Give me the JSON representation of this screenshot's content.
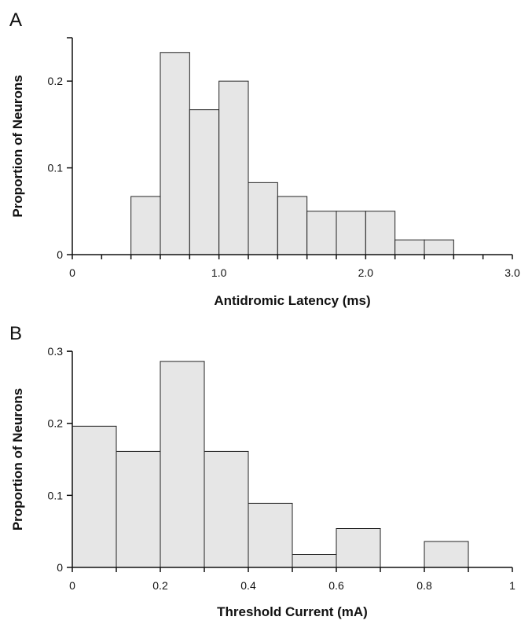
{
  "chart_data": [
    {
      "type": "bar",
      "panel_label": "A",
      "xlabel": "Antidromic Latency (ms)",
      "ylabel": "Proportion of Neurons",
      "xlim": [
        0,
        3.0
      ],
      "ylim": [
        0,
        0.25
      ],
      "x_ticks": [
        0,
        1.0,
        2.0,
        3.0
      ],
      "x_tick_labels": [
        "0",
        "1.0",
        "2.0",
        "3.0"
      ],
      "x_minor_step": 0.2,
      "y_ticks": [
        0,
        0.1,
        0.2
      ],
      "y_tick_labels": [
        "0",
        "0.1",
        "0.2"
      ],
      "bin_width": 0.2,
      "bins_start": [
        0.4,
        0.6,
        0.8,
        1.0,
        1.2,
        1.4,
        1.6,
        1.8,
        2.0,
        2.2,
        2.4
      ],
      "values": [
        0.067,
        0.233,
        0.167,
        0.2,
        0.083,
        0.067,
        0.05,
        0.05,
        0.05,
        0.017,
        0.017
      ]
    },
    {
      "type": "bar",
      "panel_label": "B",
      "xlabel": "Threshold Current (mA)",
      "ylabel": "Proportion of Neurons",
      "xlim": [
        0,
        1
      ],
      "ylim": [
        0,
        0.3
      ],
      "x_ticks": [
        0,
        0.2,
        0.4,
        0.6,
        0.8,
        1
      ],
      "x_tick_labels": [
        "0",
        "0.2",
        "0.4",
        "0.6",
        "0.8",
        "1"
      ],
      "x_minor_step": 0.1,
      "y_ticks": [
        0,
        0.1,
        0.2,
        0.3
      ],
      "y_tick_labels": [
        "0",
        "0.1",
        "0.2",
        "0.3"
      ],
      "bin_width": 0.1,
      "bins_start": [
        0.0,
        0.1,
        0.2,
        0.3,
        0.4,
        0.5,
        0.6,
        0.7,
        0.8
      ],
      "values": [
        0.196,
        0.161,
        0.286,
        0.161,
        0.089,
        0.018,
        0.054,
        0,
        0.036
      ]
    }
  ]
}
